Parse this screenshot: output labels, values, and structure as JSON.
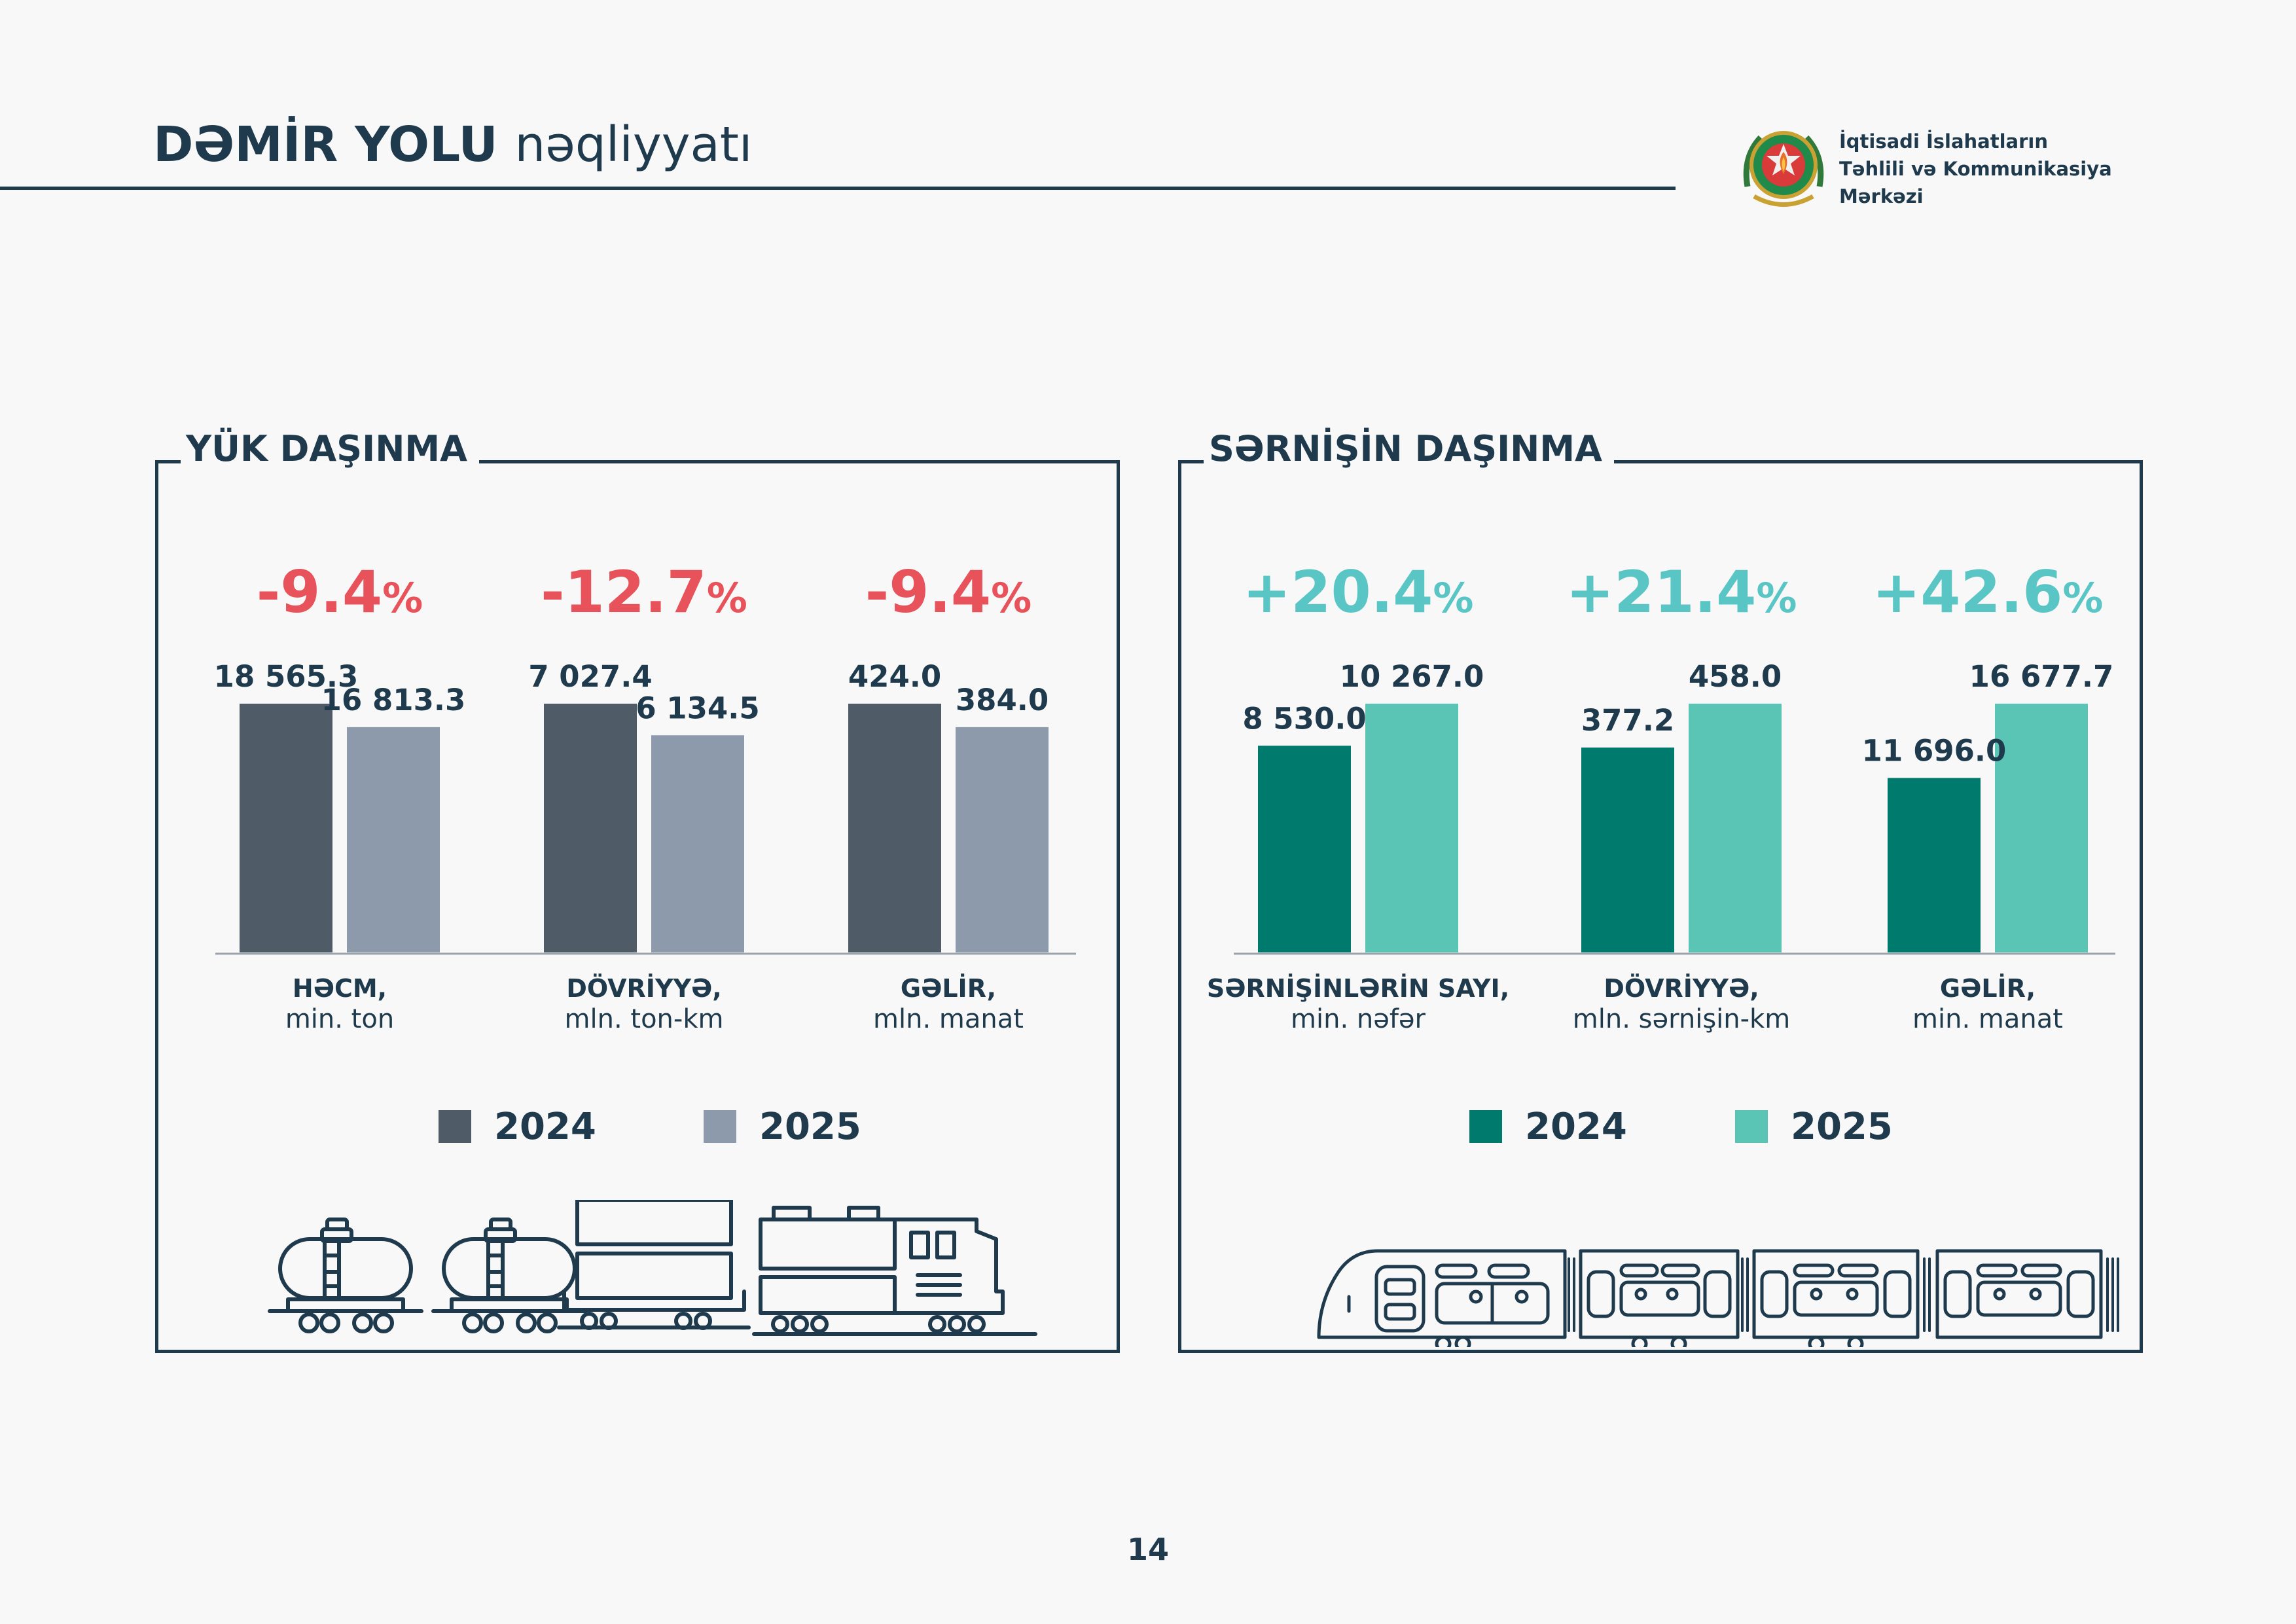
{
  "header": {
    "title_bold": "DƏMİR YOLU",
    "title_light": "nəqliyyatı"
  },
  "organization": {
    "line1": "İqtisadi İslahatların",
    "line2": "Təhlili və Kommunikasiya",
    "line3": "Mərkəzi"
  },
  "page_number": "14",
  "colors": {
    "title": "#1e3a4c",
    "negative_change": "#e8525a",
    "positive_change": "#5ac5c5",
    "cargo_2024": "#4f5b66",
    "cargo_2025": "#8c9aab",
    "passenger_2024": "#007a6c",
    "passenger_2025": "#5ac5b4"
  },
  "chart_data": [
    {
      "type": "bar",
      "panel_title": "YÜK DAŞINMA",
      "categories": [
        {
          "label": "HƏCM,",
          "unit": "min. ton"
        },
        {
          "label": "DÖVRİYYƏ,",
          "unit": "mln. ton-km"
        },
        {
          "label": "GƏLİR,",
          "unit": "mln. manat"
        }
      ],
      "changes": [
        "-9.4",
        "-12.7",
        "-9.4"
      ],
      "series": [
        {
          "name": "2024",
          "values": [
            18565.3,
            7027.4,
            424.0
          ],
          "labels": [
            "18 565.3",
            "7 027.4",
            "424.0"
          ]
        },
        {
          "name": "2025",
          "values": [
            16813.3,
            6134.5,
            384.0
          ],
          "labels": [
            "16 813.3",
            "6 134.5",
            "384.0"
          ]
        }
      ],
      "legend_position": "bottom",
      "grid": false
    },
    {
      "type": "bar",
      "panel_title": "SƏRNİŞİN DAŞINMA",
      "categories": [
        {
          "label": "SƏRNİŞİNLƏRİN SAYI,",
          "unit": "min. nəfər"
        },
        {
          "label": "DÖVRİYYƏ,",
          "unit": "mln. sərnişin-km"
        },
        {
          "label": "GƏLİR,",
          "unit": "min. manat"
        }
      ],
      "changes": [
        "+20.4",
        "+21.4",
        "+42.6"
      ],
      "series": [
        {
          "name": "2024",
          "values": [
            8530.0,
            377.2,
            11696.0
          ],
          "labels": [
            "8 530.0",
            "377.2",
            "11 696.0"
          ]
        },
        {
          "name": "2025",
          "values": [
            10267.0,
            458.0,
            16677.7
          ],
          "labels": [
            "10 267.0",
            "458.0",
            "16 677.7"
          ]
        }
      ],
      "legend_position": "bottom",
      "grid": false
    }
  ]
}
